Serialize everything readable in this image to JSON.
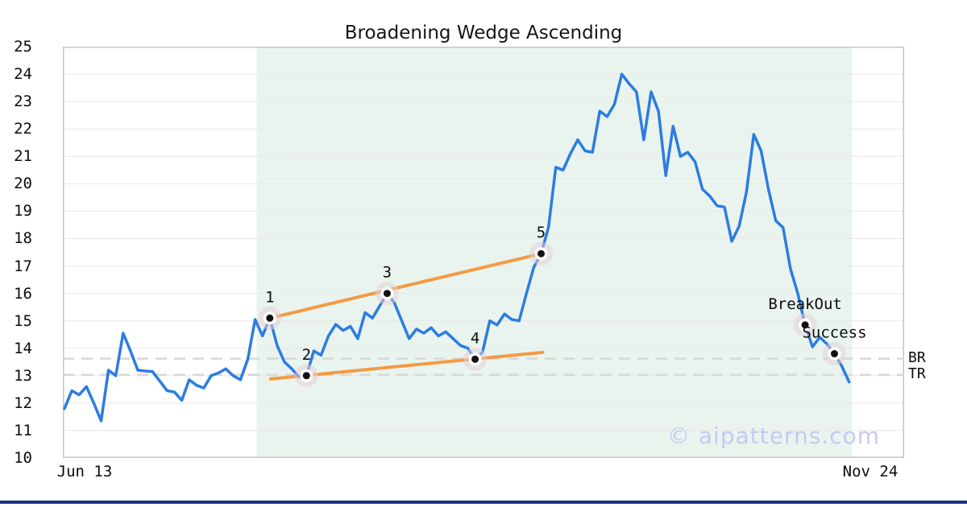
{
  "page": {
    "title": "Broadening Wedge Ascending",
    "watermark": "© aipatterns.com"
  },
  "y_axis": {
    "ticks": [
      25,
      24,
      23,
      22,
      21,
      20,
      19,
      18,
      17,
      16,
      15,
      14,
      13,
      12,
      11,
      10
    ]
  },
  "x_axis": {
    "ticks": [
      "Jun 13",
      "Nov 24"
    ]
  },
  "side_labels": {
    "br": "BR",
    "tr": "TR"
  },
  "colors": {
    "price_line": "#2d7ce1",
    "trendline": "#f49a43",
    "shaded_region": "#e9f4ef",
    "gridline": "#e8e8e8",
    "plot_border": "#c4c4c4",
    "dashed_level": "#d8d8d8",
    "halo": "#e7cdd6",
    "watermark": "#c6c9f0",
    "bottom_bar": "#1b3288"
  },
  "chart_data": {
    "type": "line",
    "title": "Broadening Wedge Ascending",
    "pattern_name": "Broadening Wedge Ascending",
    "ylim": [
      10,
      25
    ],
    "grid": "horizontal",
    "x_range_labels": [
      "Jun 13",
      "Nov 24"
    ],
    "series": [
      {
        "name": "price",
        "values": [
          11.8,
          12.45,
          12.3,
          12.6,
          12.0,
          11.35,
          13.2,
          13.0,
          14.55,
          13.9,
          13.2,
          13.17,
          13.15,
          12.8,
          12.45,
          12.4,
          12.1,
          12.85,
          12.65,
          12.55,
          13.0,
          13.1,
          13.25,
          13.0,
          12.85,
          13.6,
          15.05,
          14.45,
          15.1,
          14.1,
          13.5,
          13.25,
          12.95,
          13.0,
          13.9,
          13.75,
          14.45,
          14.87,
          14.65,
          14.8,
          14.35,
          15.3,
          15.1,
          15.55,
          16.0,
          15.65,
          15.0,
          14.35,
          14.7,
          14.55,
          14.75,
          14.45,
          14.6,
          14.35,
          14.1,
          14.0,
          13.6,
          13.85,
          15.0,
          14.85,
          15.25,
          15.05,
          15.0,
          16.0,
          16.95,
          17.45,
          18.4,
          20.6,
          20.5,
          21.1,
          21.6,
          21.2,
          21.15,
          22.65,
          22.45,
          22.9,
          24.0,
          23.65,
          23.35,
          21.6,
          23.35,
          22.65,
          20.3,
          22.1,
          21.0,
          21.15,
          20.8,
          19.8,
          19.55,
          19.2,
          19.15,
          17.9,
          18.45,
          19.7,
          21.8,
          21.2,
          19.8,
          18.65,
          18.4,
          16.9,
          16.0,
          14.85,
          14.05,
          14.4,
          14.15,
          13.8,
          13.35,
          12.77
        ]
      }
    ],
    "pattern_points": [
      {
        "label": "1",
        "index": 28,
        "value": 15.1
      },
      {
        "label": "2",
        "index": 33,
        "value": 13.0
      },
      {
        "label": "3",
        "index": 44,
        "value": 16.0
      },
      {
        "label": "4",
        "index": 56,
        "value": 13.6
      },
      {
        "label": "5",
        "index": 65,
        "value": 17.45
      }
    ],
    "annotation_points": [
      {
        "label": "BreakOut",
        "index": 101,
        "value": 14.85
      },
      {
        "label": "Success",
        "index": 105,
        "value": 13.8
      }
    ],
    "trendlines": [
      {
        "name": "upper",
        "from_index": 28,
        "from_value": 15.1,
        "to_index": 65,
        "to_value": 17.45
      },
      {
        "name": "lower",
        "from_index": 28.1,
        "from_value": 12.88,
        "to_index": 65.2,
        "to_value": 13.85
      }
    ],
    "levels": [
      {
        "label": "BR",
        "value": 13.62
      },
      {
        "label": "TR",
        "value": 13.03
      }
    ],
    "shaded_region": {
      "from_index": 26.2,
      "to_index": 107.4
    }
  }
}
